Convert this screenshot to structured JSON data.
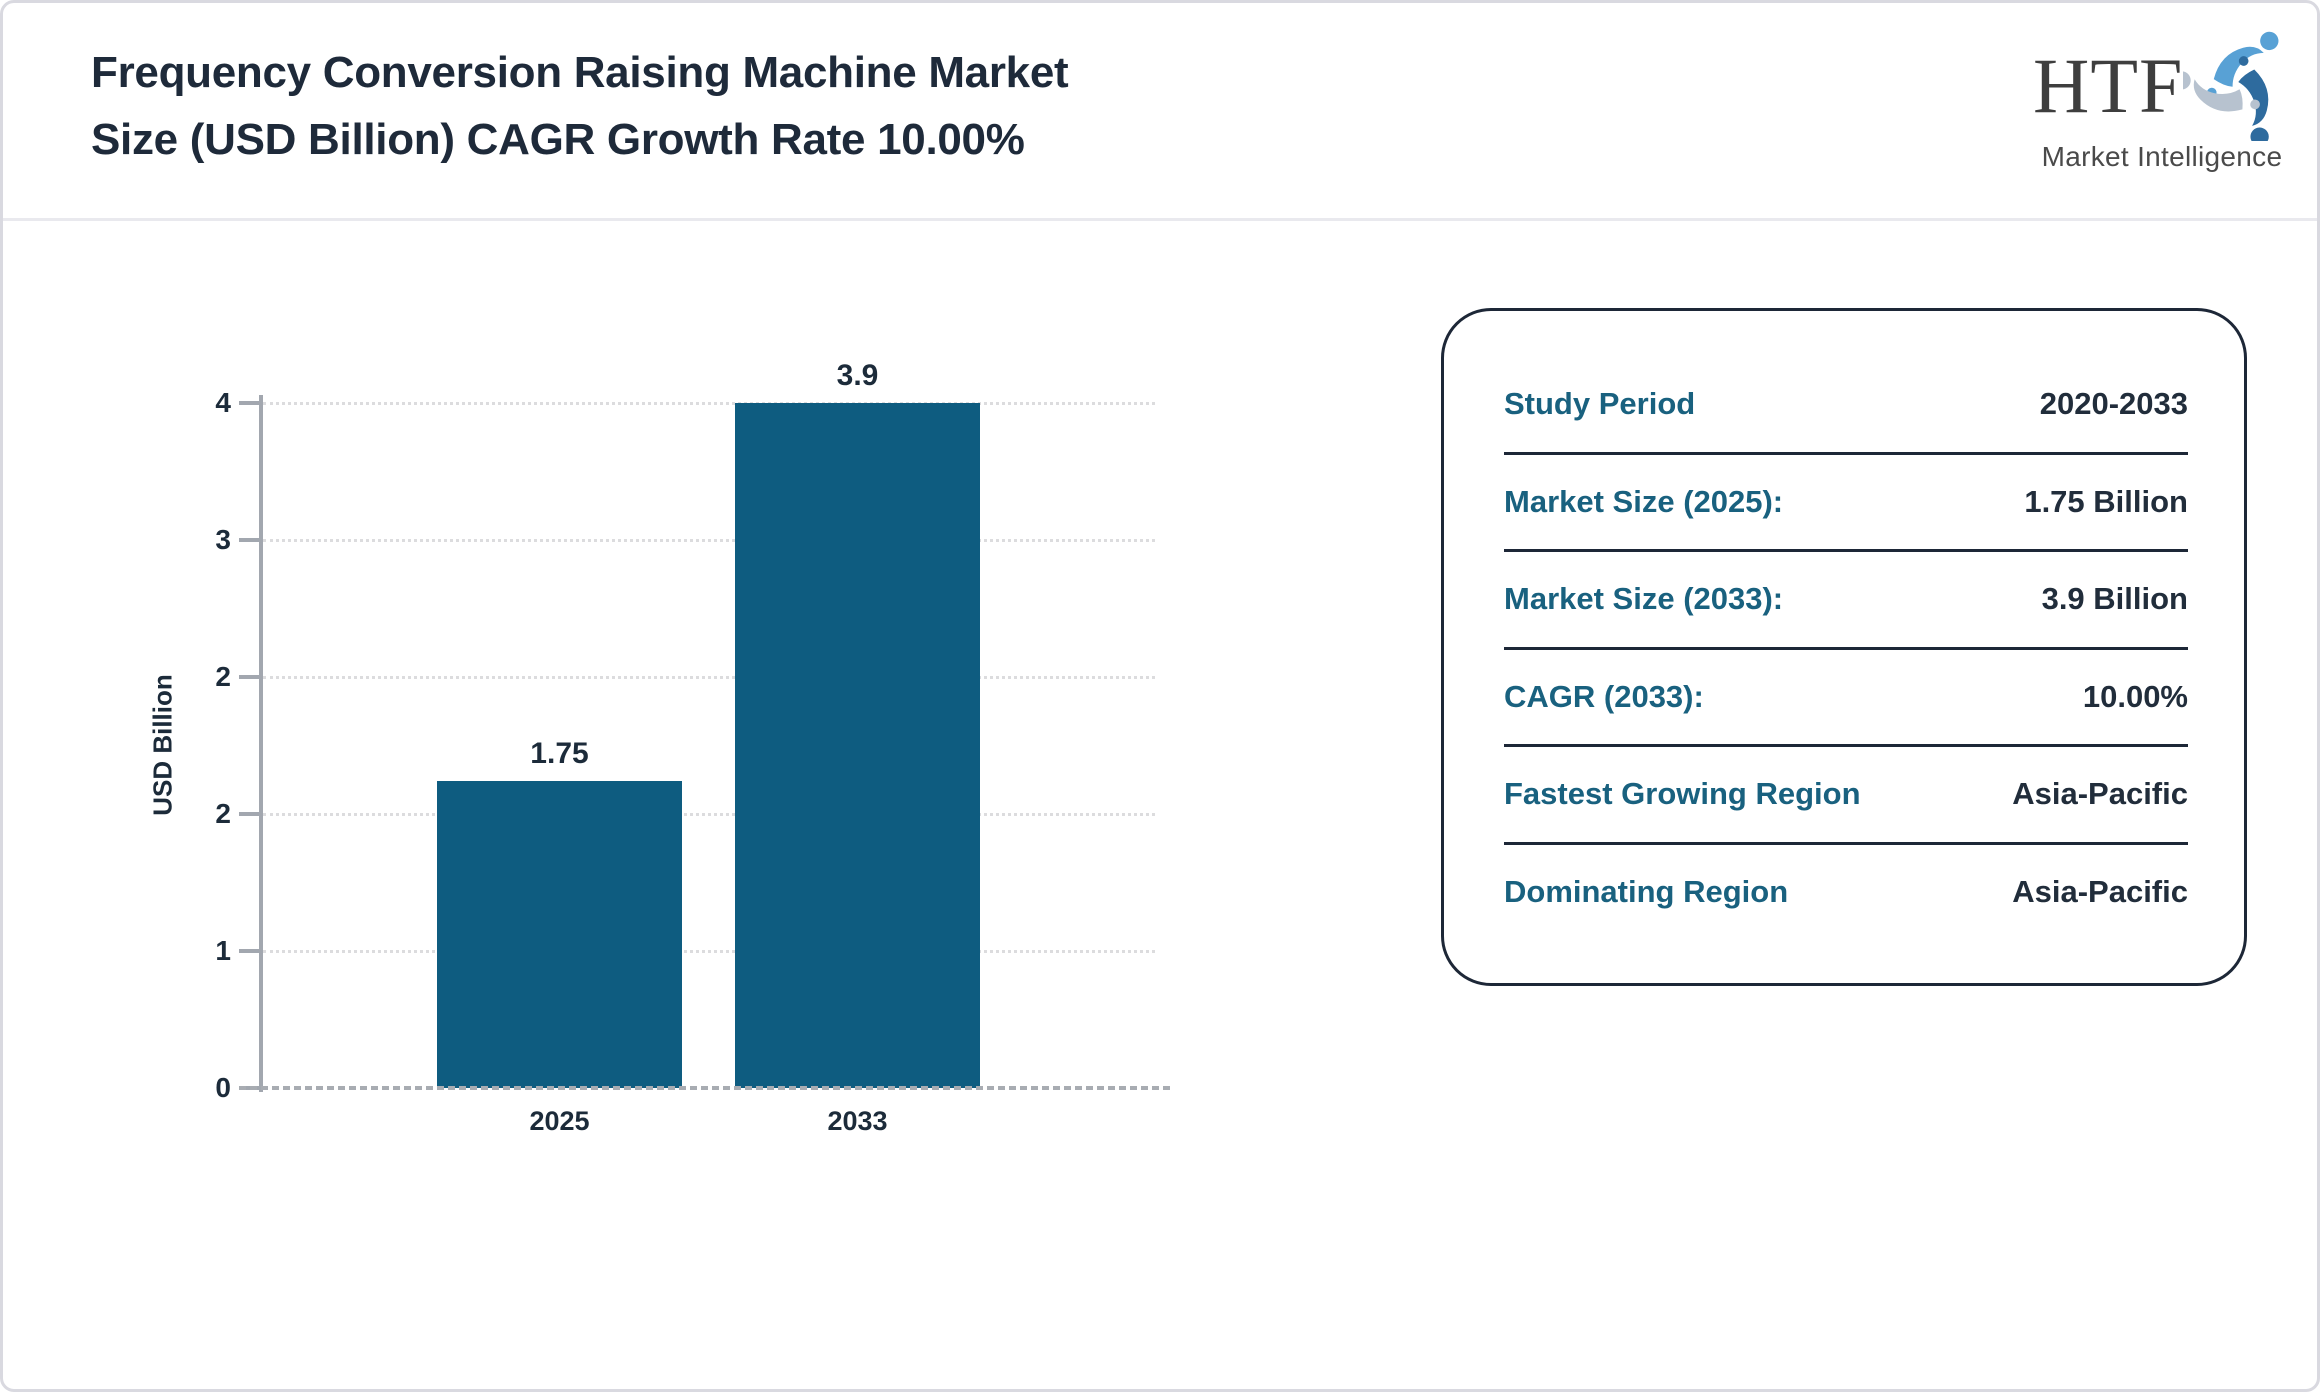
{
  "header": {
    "title_line1": "Frequency Conversion Raising Machine Market",
    "title_line2": "Size (USD Billion) CAGR Growth Rate 10.00%"
  },
  "logo": {
    "text": "HTF",
    "subtext": "Market Intelligence",
    "colors": {
      "light_blue": "#58a1d5",
      "dark_blue": "#2e6b9e",
      "gray_blue": "#b7c2cf",
      "text": "#3e3e3e"
    }
  },
  "chart_data": {
    "type": "bar",
    "title": "",
    "categories": [
      "2025",
      "2033"
    ],
    "values": [
      1.75,
      3.9
    ],
    "bar_labels": [
      "1.75",
      "3.9"
    ],
    "xlabel": "",
    "ylabel": "USD Billion",
    "ylim": [
      0,
      3.9
    ],
    "yticks_top_to_bottom": [
      "4",
      "3",
      "2",
      "2",
      "1",
      "0"
    ],
    "grid": "horizontal dotted",
    "legend": "none",
    "bar_color": "#0e5c80"
  },
  "panel": {
    "rows": [
      {
        "label": "Study Period",
        "value": "2020-2033"
      },
      {
        "label": "Market Size (2025):",
        "value": "1.75 Billion"
      },
      {
        "label": "Market Size (2033):",
        "value": "3.9 Billion"
      },
      {
        "label": "CAGR (2033):",
        "value": "10.00%"
      },
      {
        "label": "Fastest Growing Region",
        "value": "Asia-Pacific"
      },
      {
        "label": "Dominating Region",
        "value": "Asia-Pacific"
      }
    ],
    "label_color": "#19617f",
    "value_color": "#212d3b"
  }
}
